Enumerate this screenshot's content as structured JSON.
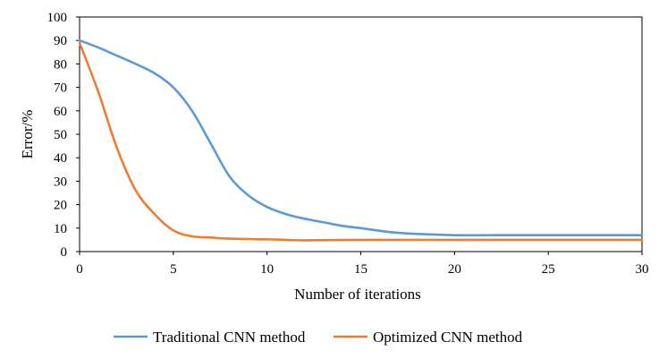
{
  "chart_data": {
    "type": "line",
    "title": "",
    "xlabel": "Number of iterations",
    "ylabel": "Error/%",
    "xlim": [
      0,
      30
    ],
    "ylim": [
      0,
      100
    ],
    "xticks": [
      0,
      5,
      10,
      15,
      20,
      25,
      30
    ],
    "yticks": [
      0,
      10,
      20,
      30,
      40,
      50,
      60,
      70,
      80,
      90,
      100
    ],
    "grid": false,
    "legend_position": "bottom",
    "series": [
      {
        "name": "Traditional CNN method",
        "color": "#5b9bd5",
        "x": [
          0,
          1,
          2,
          3,
          4,
          5,
          6,
          7,
          8,
          9,
          10,
          11,
          12,
          13,
          14,
          15,
          17,
          20,
          22,
          25,
          30
        ],
        "y": [
          90,
          87,
          83.5,
          80,
          76,
          70,
          60,
          46,
          32,
          24,
          19,
          16,
          14,
          12.5,
          11,
          10,
          8,
          7,
          7,
          7,
          7
        ]
      },
      {
        "name": "Optimized CNN method",
        "color": "#ed7d31",
        "x": [
          0,
          1,
          2,
          3,
          4,
          5,
          6,
          7,
          8,
          10,
          11,
          12,
          15,
          20,
          25,
          30
        ],
        "y": [
          89,
          68,
          44,
          26,
          16,
          9,
          6.5,
          6,
          5.5,
          5.2,
          5,
          4.8,
          5,
          5,
          5,
          5
        ]
      }
    ]
  }
}
